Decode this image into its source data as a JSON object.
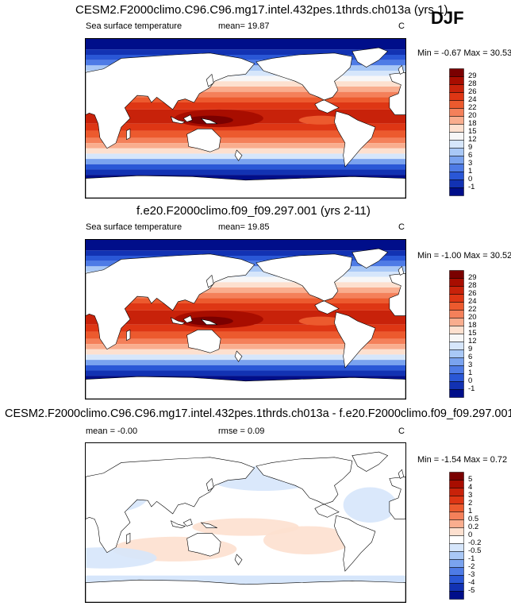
{
  "season": "DJF",
  "panels": [
    {
      "title": "CESM2.F2000climo.C96.C96.mg17.intel.432pes.1thrds.ch013a (yrs 1)",
      "left": "Sea surface temperature",
      "mid": "mean=  19.87",
      "unit": "C",
      "minmax": "Min = -0.67 Max = 30.53",
      "levels": [
        "29",
        "28",
        "26",
        "24",
        "22",
        "20",
        "18",
        "15",
        "12",
        "9",
        "6",
        "3",
        "1",
        "0",
        "-1"
      ]
    },
    {
      "title": "f.e20.F2000climo.f09_f09.297.001 (yrs 2-11)",
      "left": "Sea surface temperature",
      "mid": "mean=  19.85",
      "unit": "C",
      "minmax": "Min = -1.00 Max = 30.52",
      "levels": [
        "29",
        "28",
        "26",
        "24",
        "22",
        "20",
        "18",
        "15",
        "12",
        "9",
        "6",
        "3",
        "1",
        "0",
        "-1"
      ]
    },
    {
      "title": "CESM2.F2000climo.C96.C96.mg17.intel.432pes.1thrds.ch013a - f.e20.F2000climo.f09_f09.297.001",
      "left": "mean =  -0.00",
      "mid": "rmse =  0.09",
      "unit": "C",
      "minmax": "Min = -1.54 Max =  0.72",
      "levels": [
        "5",
        "4",
        "3",
        "2",
        "1",
        "0.5",
        "0.2",
        "0",
        "-0.2",
        "-0.5",
        "-1",
        "-2",
        "-3",
        "-4",
        "-5"
      ]
    }
  ],
  "colors": {
    "abs_scale": [
      "#7a0000",
      "#a80d00",
      "#c8220a",
      "#de3614",
      "#ec5a2e",
      "#f4805a",
      "#f9ad8e",
      "#fde0cf",
      "#f7f7f7",
      "#d6e6fb",
      "#a9c8f6",
      "#7aa3ef",
      "#4e7be6",
      "#2a57d6",
      "#1232b3",
      "#000e8a"
    ],
    "diff_scale": [
      "#7a0000",
      "#a80d00",
      "#c8220a",
      "#de3614",
      "#ec5a2e",
      "#f4805a",
      "#f9ad8e",
      "#fde0cf",
      "#ffffff",
      "#d6e6fb",
      "#a9c8f6",
      "#7aa3ef",
      "#4e7be6",
      "#2a57d6",
      "#1232b3",
      "#000e8a"
    ],
    "land": "#ffffff",
    "coast": "#000000"
  },
  "chart_data": [
    {
      "type": "heatmap",
      "title": "CESM2.F2000climo.C96.C96.mg17.intel.432pes.1thrds.ch013a (yrs 1)",
      "variable": "Sea surface temperature",
      "units": "C",
      "mean": 19.87,
      "min": -0.67,
      "max": 30.53,
      "contour_levels": [
        -1,
        0,
        1,
        3,
        6,
        9,
        12,
        15,
        18,
        20,
        22,
        24,
        26,
        28,
        29
      ]
    },
    {
      "type": "heatmap",
      "title": "f.e20.F2000climo.f09_f09.297.001 (yrs 2-11)",
      "variable": "Sea surface temperature",
      "units": "C",
      "mean": 19.85,
      "min": -1.0,
      "max": 30.52,
      "contour_levels": [
        -1,
        0,
        1,
        3,
        6,
        9,
        12,
        15,
        18,
        20,
        22,
        24,
        26,
        28,
        29
      ]
    },
    {
      "type": "heatmap",
      "title": "CESM2.F2000climo.C96.C96.mg17.intel.432pes.1thrds.ch013a - f.e20.F2000climo.f09_f09.297.001",
      "units": "C",
      "mean": -0.0,
      "rmse": 0.09,
      "min": -1.54,
      "max": 0.72,
      "contour_levels": [
        -5,
        -4,
        -3,
        -2,
        -1,
        -0.5,
        -0.2,
        0,
        0.2,
        0.5,
        1,
        2,
        3,
        4,
        5
      ]
    }
  ]
}
